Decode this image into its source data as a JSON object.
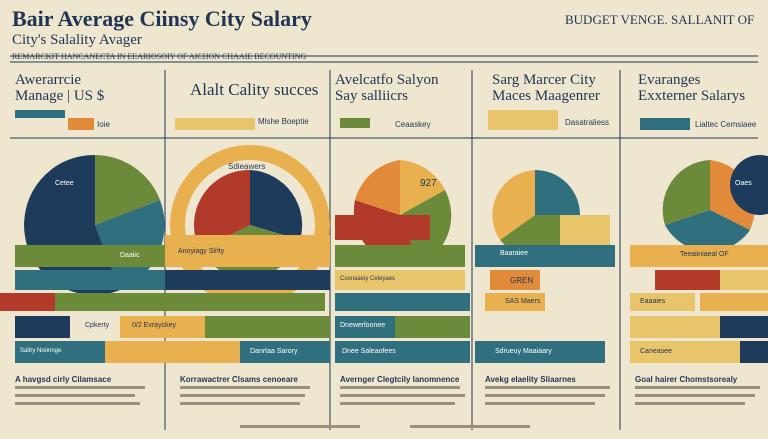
{
  "header": {
    "title": "Bair Average Ciinsy City Salary",
    "subtitle": "City's Salality Avager",
    "corner": "BUDGET VENGE. SALLANIT OF",
    "banner": "REMARCKIT HANCANECTA IN EEARIOSOIY OF AICHON CHAAIE BECOUNTING"
  },
  "panels": [
    {
      "title": "Awerarrcie",
      "subtitle": "Manage | US $",
      "note": "Ioie",
      "pie_label": "Cetee",
      "bar_labels": [
        "Daaiic",
        "Cpkerty",
        "Saltry Nreinnge"
      ]
    },
    {
      "title": "Alalt Cality succes",
      "note": "Mlshe Boeptie",
      "pie_label": "Sdieawers",
      "bar_labels": [
        "Anoyiagy Slrlty",
        "0/2 Evrayckey",
        "Danrtaa Sarory"
      ]
    },
    {
      "title": "Avelcatfo Salyon",
      "subtitle": "Say salliicrs",
      "note": "Ceaaskey",
      "pie_label": "927",
      "bar_labels": [
        "Cosnaaioy Celeyaes",
        "Dnewerloonee",
        "Dnee Saleaofees"
      ]
    },
    {
      "title": "Sarg Marcer City",
      "subtitle": "Maces Maagenrer",
      "note": "Dasatraliess",
      "pie_label": "Baaraiee",
      "bar_labels": [
        "GREN",
        "SAS Maers",
        "Sdrueuy Maaiaary"
      ]
    },
    {
      "title": "Evaranges",
      "subtitle": "Exxterner Salarys",
      "note": "Lialtec Cemsiaee",
      "pie_label": "Oaes",
      "bar_labels": [
        "Teeaiiniaeal OF",
        "Eaaaies",
        "Caneasee"
      ]
    }
  ],
  "captions": [
    "A havgsd cirly Cilamsace",
    "Korrawactrer Clsams cenoeare",
    "Avernger Clegtcily lanomnence",
    "Avekg elaelity Sliaarnes",
    "Goal hairer Chomstsorealy"
  ]
}
